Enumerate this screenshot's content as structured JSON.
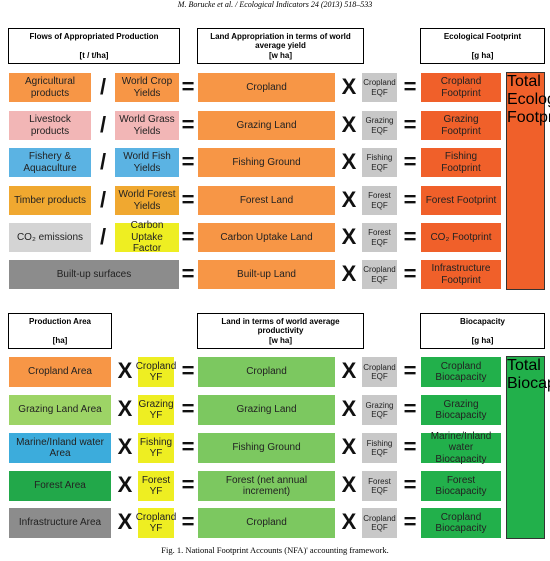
{
  "header": {
    "citation": "M. Borucke et al. / Ecological Indicators 24 (2013) 518–533"
  },
  "top": {
    "headers": [
      {
        "title": "Flows of Appropriated Production",
        "unit": "[t / t/ha]"
      },
      {
        "title": "Land Appropriation in terms of world average yield",
        "unit": "[w ha]"
      },
      {
        "title": "Ecological Footprint",
        "unit": "[g ha]"
      }
    ],
    "operators": [
      "/",
      "=",
      "X",
      "="
    ],
    "rows": [
      {
        "input": "Agricultural products",
        "factor": "World Crop Yields",
        "land": "Cropland",
        "eqf": "Cropland EQF",
        "result": "Cropland Footprint"
      },
      {
        "input": "Livestock products",
        "factor": "World Grass Yields",
        "land": "Grazing Land",
        "eqf": "Grazing EQF",
        "result": "Grazing Footprint"
      },
      {
        "input": "Fishery & Aquaculture",
        "factor": "World Fish Yields",
        "land": "Fishing Ground",
        "eqf": "Fishing EQF",
        "result": "Fishing Footprint"
      },
      {
        "input": "Timber products",
        "factor": "World Forest Yields",
        "land": "Forest Land",
        "eqf": "Forest EQF",
        "result": "Forest Footprint"
      },
      {
        "input": "CO₂ emissions",
        "factor": "Carbon Uptake Factor",
        "land": "Carbon Uptake Land",
        "eqf": "Forest EQF",
        "result": "CO₂ Footprint"
      },
      {
        "input": "Built-up surfaces",
        "land": "Built-up Land",
        "eqf": "Cropland EQF",
        "result": "Infrastructure Footprint"
      }
    ],
    "total": "Total Ecological Footprint"
  },
  "bottom": {
    "headers": [
      {
        "title": "Production Area",
        "unit": "[ha]"
      },
      {
        "title": "Land in terms of world average productivity",
        "unit": "[w ha]"
      },
      {
        "title": "Biocapacity",
        "unit": "[g ha]"
      }
    ],
    "operators": [
      "X",
      "=",
      "X",
      "="
    ],
    "rows": [
      {
        "input": "Cropland Area",
        "factor": "Cropland YF",
        "land": "Cropland",
        "eqf": "Cropland EQF",
        "result": "Cropland Biocapacity"
      },
      {
        "input": "Grazing Land Area",
        "factor": "Grazing YF",
        "land": "Grazing Land",
        "eqf": "Grazing EQF",
        "result": "Grazing Biocapacity"
      },
      {
        "input": "Marine/Inland water Area",
        "factor": "Fishing YF",
        "land": "Fishing Ground",
        "eqf": "Fishing EQF",
        "result": "Marine/Inland water Biocapacity"
      },
      {
        "input": "Forest Area",
        "factor": "Forest YF",
        "land": "Forest (net annual increment)",
        "eqf": "Forest EQF",
        "result": "Forest Biocapacity"
      },
      {
        "input": "Infrastructure Area",
        "factor": "Cropland YF",
        "land": "Cropland",
        "eqf": "Cropland EQF",
        "result": "Cropland Biocapacity"
      }
    ],
    "total": "Total Biocapacity"
  },
  "caption": "Fig. 1. National Footprint Accounts (NFA)' accounting framework."
}
